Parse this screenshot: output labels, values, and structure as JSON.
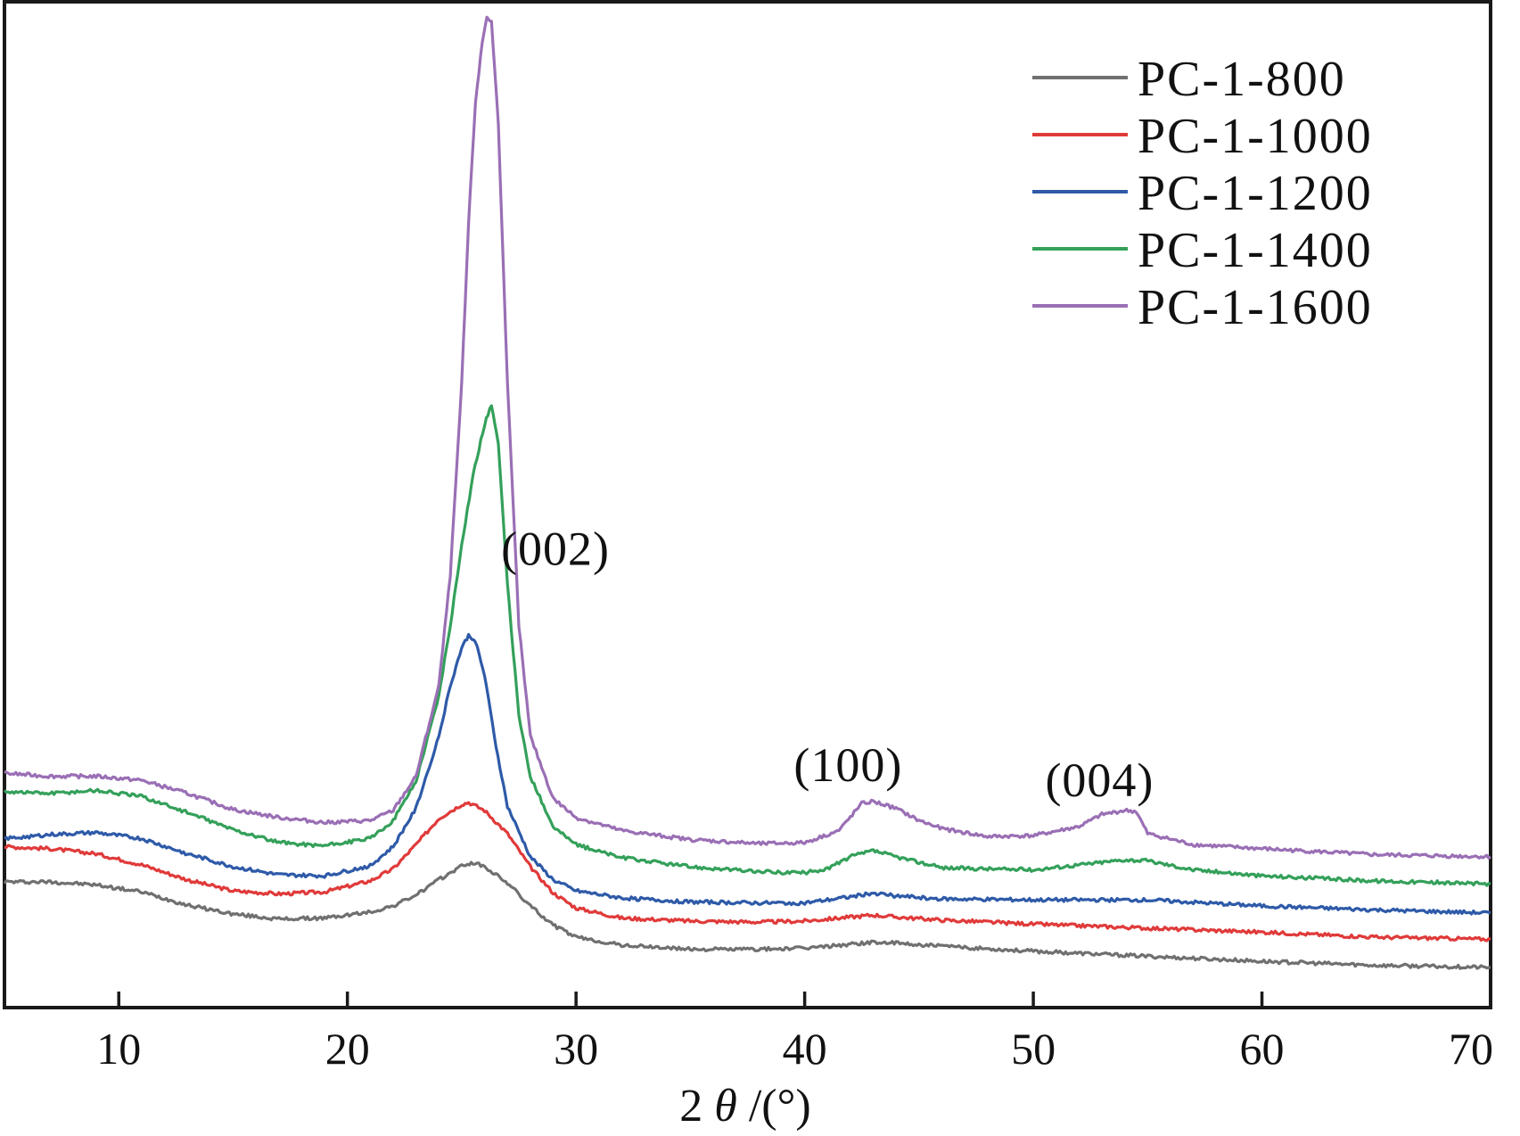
{
  "chart_data": {
    "type": "line",
    "xlabel": {
      "prefix": "2 ",
      "symbol": "θ",
      "suffix": " /(°)"
    },
    "ylabel": "",
    "xlim": [
      5,
      70
    ],
    "ylim": [
      0,
      100
    ],
    "xticks": [
      10,
      20,
      30,
      40,
      50,
      60,
      70
    ],
    "yticks": [],
    "grid": false,
    "legend_position": "top-right",
    "annotations": [
      {
        "text": "(002)",
        "x": 29.1,
        "y": 44
      },
      {
        "text": "(100)",
        "x": 41.9,
        "y": 22.5
      },
      {
        "text": "(004)",
        "x": 52.9,
        "y": 21
      }
    ],
    "series": [
      {
        "name": "PC-1-800",
        "color": "#707070",
        "x": [
          5,
          7,
          9,
          11,
          13,
          15,
          17,
          19,
          21,
          22,
          23,
          24,
          25,
          25.5,
          26,
          27,
          28,
          29,
          30,
          32,
          35,
          38,
          40,
          42,
          43,
          44,
          46,
          50,
          55,
          60,
          65,
          70
        ],
        "y": [
          12.5,
          12.5,
          12.2,
          11.5,
          10.2,
          9.3,
          8.8,
          8.9,
          9.5,
          10.1,
          11.2,
          12.7,
          14.1,
          14.4,
          14.0,
          12.4,
          10.1,
          8.2,
          7.0,
          6.2,
          5.8,
          5.8,
          5.9,
          6.3,
          6.5,
          6.4,
          6.1,
          5.6,
          5.1,
          4.6,
          4.2,
          4.0
        ]
      },
      {
        "name": "PC-1-1000",
        "color": "#e03a3a",
        "x": [
          5,
          7,
          9,
          11,
          13,
          15,
          17,
          19,
          21,
          22,
          23,
          24,
          25,
          25.3,
          26,
          27,
          28,
          29,
          30,
          32,
          35,
          38,
          40,
          42,
          43,
          44,
          46,
          50,
          55,
          60,
          65,
          70
        ],
        "y": [
          16,
          15.8,
          15.3,
          14.2,
          12.7,
          11.6,
          11.3,
          11.5,
          12.6,
          13.8,
          16.2,
          18.8,
          20.2,
          20.4,
          19.6,
          17.3,
          14.0,
          11.4,
          9.9,
          8.9,
          8.6,
          8.5,
          8.6,
          9.0,
          9.2,
          9.0,
          8.7,
          8.3,
          7.9,
          7.5,
          7.0,
          6.8
        ]
      },
      {
        "name": "PC-1-1200",
        "color": "#2e5aa8",
        "x": [
          5,
          7,
          9,
          11,
          13,
          15,
          17,
          19,
          21,
          22,
          23,
          24,
          24.5,
          25,
          25.3,
          25.6,
          26,
          26.5,
          27,
          28,
          29,
          30,
          32,
          35,
          38,
          40,
          42,
          43,
          44,
          46,
          50,
          55,
          60,
          65,
          70
        ],
        "y": [
          16.8,
          17.2,
          17.4,
          16.8,
          15.3,
          14.0,
          13.2,
          13.1,
          14.1,
          16.0,
          19.8,
          27.0,
          32.0,
          35.8,
          37.0,
          36.5,
          33.0,
          26.0,
          20.0,
          15.0,
          12.7,
          11.6,
          10.9,
          10.5,
          10.4,
          10.4,
          11.0,
          11.4,
          11.1,
          10.8,
          10.7,
          10.7,
          10.1,
          9.7,
          9.4
        ]
      },
      {
        "name": "PC-1-1400",
        "color": "#34a05a",
        "x": [
          5,
          7,
          9,
          11,
          13,
          15,
          17,
          19,
          21,
          22,
          23,
          24,
          24.5,
          25,
          25.5,
          26,
          26.3,
          26.6,
          27,
          27.5,
          28,
          29,
          30,
          32,
          35,
          38,
          40,
          41,
          42,
          43,
          44,
          46,
          50,
          52,
          54,
          55,
          57,
          60,
          65,
          70
        ],
        "y": [
          21.5,
          21.3,
          21.6,
          21.0,
          19.4,
          17.7,
          16.4,
          16.1,
          16.8,
          18.6,
          22.5,
          31.0,
          38.0,
          46.0,
          53.0,
          58.0,
          60.0,
          56.0,
          42.0,
          29.0,
          23.0,
          18.0,
          16.2,
          14.9,
          14.0,
          13.5,
          13.4,
          13.8,
          15.0,
          15.6,
          15.0,
          13.9,
          13.7,
          14.2,
          14.7,
          14.6,
          13.7,
          13.1,
          12.6,
          12.3
        ]
      },
      {
        "name": "PC-1-1600",
        "color": "#9a6fb5",
        "x": [
          5,
          7,
          9,
          11,
          13,
          15,
          17,
          19,
          21,
          22,
          23,
          24,
          24.5,
          25,
          25.3,
          25.6,
          25.9,
          26.1,
          26.3,
          26.6,
          27,
          27.5,
          28,
          29,
          30,
          32,
          35,
          38,
          40,
          41.5,
          42.5,
          43,
          44,
          45,
          46,
          48,
          50,
          52,
          53,
          54,
          54.5,
          55,
          57,
          60,
          65,
          70
        ],
        "y": [
          23.3,
          23.0,
          23.0,
          22.6,
          21.3,
          19.7,
          18.9,
          18.4,
          18.6,
          19.6,
          23.0,
          32.0,
          43.0,
          62.0,
          78.0,
          90.0,
          96.0,
          98.5,
          98.0,
          88.0,
          62.0,
          38.0,
          27.0,
          20.8,
          18.9,
          17.6,
          16.7,
          16.3,
          16.4,
          17.6,
          20.3,
          20.5,
          19.8,
          18.6,
          17.8,
          17.0,
          17.1,
          18.0,
          19.2,
          19.6,
          19.5,
          17.3,
          16.2,
          15.8,
          15.2,
          15.0
        ]
      }
    ]
  }
}
